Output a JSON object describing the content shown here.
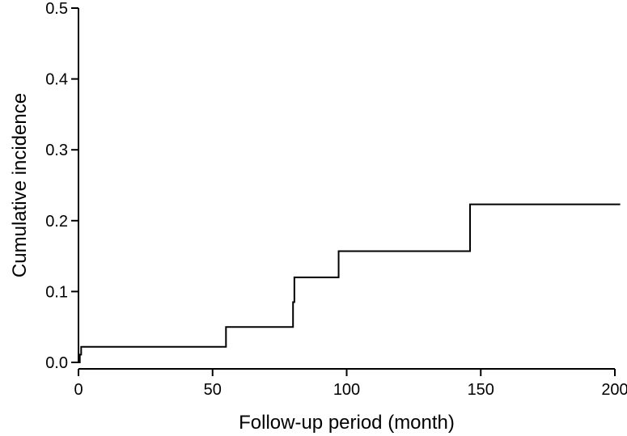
{
  "chart_data": {
    "type": "line",
    "title": "",
    "xlabel": "Follow-up period (month)",
    "ylabel": "Cumulative incidence",
    "xlim": [
      0,
      200
    ],
    "ylim": [
      0,
      0.5
    ],
    "x_ticks": [
      0,
      50,
      100,
      150,
      200
    ],
    "x_tick_labels": [
      "0",
      "50",
      "100",
      "150",
      "200"
    ],
    "y_ticks": [
      0,
      0.1,
      0.2,
      0.3,
      0.4,
      0.5
    ],
    "y_tick_labels": [
      "0.0",
      "0.1",
      "0.2",
      "0.3",
      "0.4",
      "0.5"
    ],
    "grid": false,
    "step": true,
    "series": [
      {
        "x": [
          0,
          0.5,
          1,
          55,
          80,
          80.5,
          97,
          146,
          202
        ],
        "y": [
          0.0,
          0.011,
          0.022,
          0.05,
          0.085,
          0.12,
          0.157,
          0.223,
          0.223
        ]
      }
    ]
  }
}
